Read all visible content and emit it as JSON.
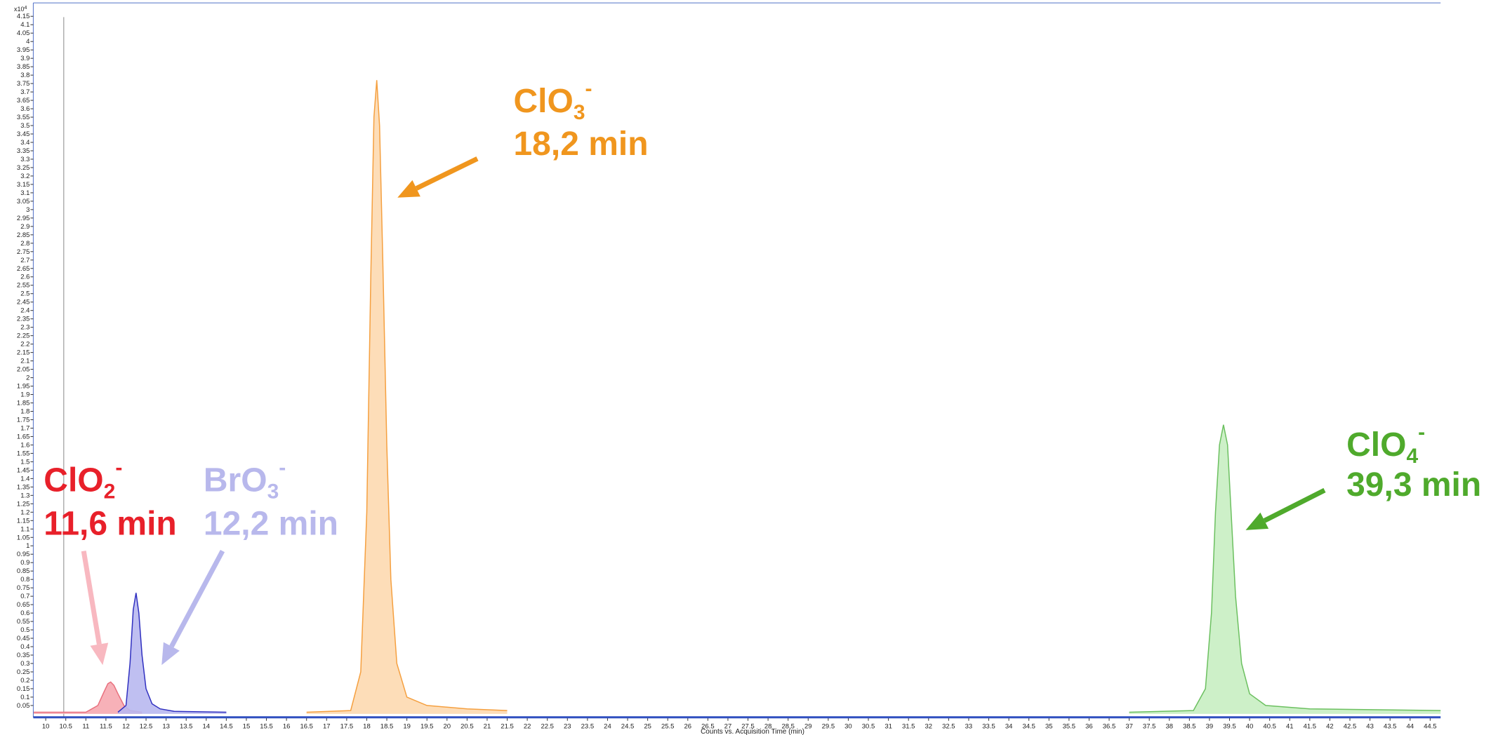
{
  "chart_data": {
    "type": "area",
    "x_label": "Counts vs. Acquisition Time (min)",
    "y_multiplier": {
      "base": "x10",
      "exp": "4"
    },
    "xlim": [
      9.69,
      44.76
    ],
    "ylim": [
      -0.02,
      4.23
    ],
    "xticks": [
      10,
      10.5,
      11,
      11.5,
      12,
      12.5,
      13,
      13.5,
      14,
      14.5,
      15,
      15.5,
      16,
      16.5,
      17,
      17.5,
      18,
      18.5,
      19,
      19.5,
      20,
      20.5,
      21,
      21.5,
      22,
      22.5,
      23,
      23.5,
      24,
      24.5,
      25,
      25.5,
      26,
      26.5,
      27,
      27.5,
      28,
      28.5,
      29,
      29.5,
      30,
      30.5,
      31,
      31.5,
      32,
      32.5,
      33,
      33.5,
      34,
      34.5,
      35,
      35.5,
      36,
      36.5,
      37,
      37.5,
      38,
      38.5,
      39,
      39.5,
      40,
      40.5,
      41,
      41.5,
      42,
      42.5,
      43,
      43.5,
      44,
      44.5
    ],
    "yticks": [
      0.05,
      0.1,
      0.15,
      0.2,
      0.25,
      0.3,
      0.35,
      0.4,
      0.45,
      0.5,
      0.55,
      0.6,
      0.65,
      0.7,
      0.75,
      0.8,
      0.85,
      0.9,
      0.95,
      1,
      1.05,
      1.1,
      1.15,
      1.2,
      1.25,
      1.3,
      1.35,
      1.4,
      1.45,
      1.5,
      1.55,
      1.6,
      1.65,
      1.7,
      1.75,
      1.8,
      1.85,
      1.9,
      1.95,
      2,
      2.05,
      2.1,
      2.15,
      2.2,
      2.25,
      2.3,
      2.35,
      2.4,
      2.45,
      2.5,
      2.55,
      2.6,
      2.65,
      2.7,
      2.75,
      2.8,
      2.85,
      2.9,
      2.95,
      3,
      3.05,
      3.1,
      3.15,
      3.2,
      3.25,
      3.3,
      3.35,
      3.4,
      3.45,
      3.5,
      3.55,
      3.6,
      3.65,
      3.7,
      3.75,
      3.8,
      3.85,
      3.9,
      3.95,
      4,
      4.05,
      4.1,
      4.15
    ],
    "series": [
      {
        "color": "#e8707e",
        "fill": "#f6a8b0",
        "x": [
          9.7,
          11.0,
          11.3,
          11.45,
          11.55,
          11.62,
          11.7,
          11.8,
          11.95,
          12.1,
          12.4
        ],
        "values": [
          0.01,
          0.01,
          0.05,
          0.13,
          0.18,
          0.19,
          0.17,
          0.12,
          0.05,
          0.02,
          0.01
        ]
      },
      {
        "color": "#3030c0",
        "fill": "#b8b8f0",
        "x": [
          11.8,
          12.0,
          12.1,
          12.18,
          12.25,
          12.32,
          12.4,
          12.5,
          12.65,
          12.85,
          13.2,
          14.5
        ],
        "values": [
          0.01,
          0.05,
          0.3,
          0.62,
          0.72,
          0.6,
          0.35,
          0.15,
          0.06,
          0.03,
          0.015,
          0.01
        ]
      },
      {
        "color": "#f5a040",
        "fill": "#fdd9b0",
        "x": [
          16.5,
          17.6,
          17.85,
          18.0,
          18.1,
          18.18,
          18.25,
          18.32,
          18.4,
          18.5,
          18.6,
          18.75,
          19.0,
          19.5,
          20.5,
          21.5
        ],
        "values": [
          0.01,
          0.02,
          0.25,
          1.2,
          2.6,
          3.55,
          3.77,
          3.5,
          2.7,
          1.6,
          0.8,
          0.3,
          0.1,
          0.05,
          0.03,
          0.02
        ]
      },
      {
        "color": "#6cc060",
        "fill": "#c8eec2",
        "x": [
          37.0,
          38.6,
          38.9,
          39.05,
          39.15,
          39.25,
          39.35,
          39.45,
          39.55,
          39.65,
          39.8,
          40.0,
          40.4,
          41.5,
          44.76
        ],
        "values": [
          0.01,
          0.02,
          0.15,
          0.6,
          1.2,
          1.6,
          1.72,
          1.6,
          1.15,
          0.7,
          0.3,
          0.12,
          0.05,
          0.03,
          0.02
        ]
      }
    ],
    "annotations": [
      {
        "base": "ClO",
        "sub": "2",
        "sup": "-",
        "time": "11,6 min",
        "color": "#e8202a",
        "arrow_color": "#f8b8c0"
      },
      {
        "base": "BrO",
        "sub": "3",
        "sup": "-",
        "time": "12,2 min",
        "color": "#b8b8ec",
        "arrow_color": "#b8b8ec"
      },
      {
        "base": "ClO",
        "sub": "3",
        "sup": "-",
        "time": "18,2 min",
        "color": "#f0961e",
        "arrow_color": "#f0961e"
      },
      {
        "base": "ClO",
        "sub": "4",
        "sup": "-",
        "time": "39,3 min",
        "color": "#4faa2c",
        "arrow_color": "#4faa2c"
      }
    ]
  }
}
